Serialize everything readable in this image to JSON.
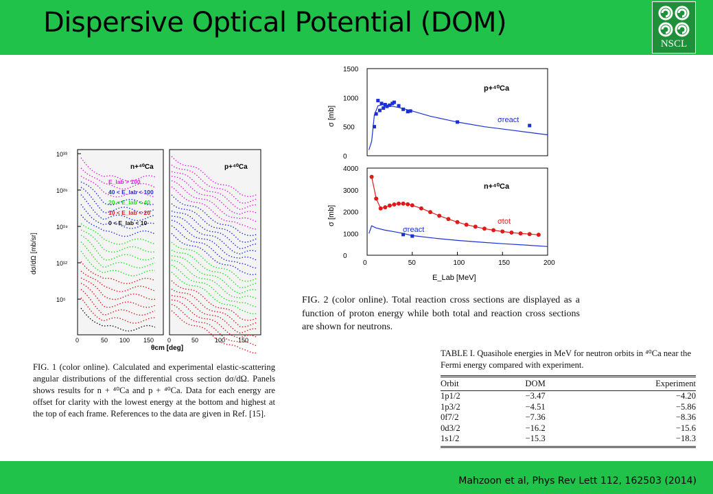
{
  "slide": {
    "title": "Dispersive Optical Potential (DOM)",
    "logo_text": "NSCL",
    "citation": "Mahzoon et al, Phys Rev Lett 112, 162503 (2014)"
  },
  "fig1": {
    "panel_left_label": "n+⁴⁰Ca",
    "panel_right_label": "p+⁴⁰Ca",
    "y_axis_label": "dσ/dΩ [mb/sr]",
    "x_axis_label": "θcm [deg]",
    "y_ticks": [
      "10³³",
      "10²⁶",
      "10¹⁹",
      "10¹²",
      "10⁵"
    ],
    "x_ticks_left": [
      "0",
      "50",
      "100",
      "150"
    ],
    "x_ticks_right": [
      "0",
      "50",
      "100",
      "150"
    ],
    "legend": [
      {
        "label": "E_lab > 100",
        "color": "#e01ee0"
      },
      {
        "label": "40 < E_lab < 100",
        "color": "#1a2fd8"
      },
      {
        "label": "20 < E_lab < 40",
        "color": "#1ee01e"
      },
      {
        "label": "10 < E_lab < 20",
        "color": "#e01a1a"
      },
      {
        "label": "0 < E_lab < 10",
        "color": "#111111"
      }
    ],
    "caption": "FIG. 1 (color online). Calculated and experimental elastic-scattering angular distributions of the differential cross section dσ/dΩ. Panels shows results for n + ⁴⁰Ca and p + ⁴⁰Ca. Data for each energy are offset for clarity with the lowest energy at the bottom and highest at the top of each frame. References to the data are given in Ref. [15]."
  },
  "fig2": {
    "top_panel_label": "p+⁴⁰Ca",
    "bottom_panel_label": "n+⁴⁰Ca",
    "top_y_label": "σ [mb]",
    "bottom_y_label": "σ [mb]",
    "x_label": "E_Lab [MeV]",
    "top_y_ticks": [
      "1500",
      "1000",
      "500",
      "0"
    ],
    "bottom_y_ticks": [
      "4000",
      "3000",
      "2000",
      "1000",
      "0"
    ],
    "x_ticks": [
      "0",
      "50",
      "100",
      "150",
      "200"
    ],
    "top_curve_label": "σreact",
    "bottom_tot_label": "σtot",
    "bottom_react_label": "σreact",
    "caption": "FIG. 2 (color online). Total reaction cross sections are displayed as a function of proton energy while both total and reaction cross sections are shown for neutrons."
  },
  "table1": {
    "caption": "TABLE I. Quasihole energies in MeV for neutron orbits in ⁴⁰Ca near the Fermi energy compared with experiment.",
    "headers": [
      "Orbit",
      "DOM",
      "Experiment"
    ],
    "rows": [
      {
        "orbit": "1p1/2",
        "dom": "−3.47",
        "exp": "−4.20"
      },
      {
        "orbit": "1p3/2",
        "dom": "−4.51",
        "exp": "−5.86"
      },
      {
        "orbit": "0f7/2",
        "dom": "−7.36",
        "exp": "−8.36"
      },
      {
        "orbit": "0d3/2",
        "dom": "−16.2",
        "exp": "−15.6"
      },
      {
        "orbit": "1s1/2",
        "dom": "−15.3",
        "exp": "−18.3"
      }
    ]
  },
  "chart_data": [
    {
      "type": "line",
      "title": "p+⁴⁰Ca",
      "xlabel": "E_Lab [MeV]",
      "ylabel": "σ [mb]",
      "xlim": [
        0,
        200
      ],
      "ylim": [
        0,
        1500
      ],
      "series": [
        {
          "name": "σreact",
          "kind": "curve",
          "color": "#1a2fd8",
          "x": [
            2,
            5,
            8,
            12,
            18,
            25,
            35,
            50,
            70,
            100,
            130,
            160,
            200
          ],
          "values": [
            100,
            250,
            700,
            860,
            880,
            860,
            830,
            770,
            680,
            580,
            500,
            440,
            360
          ]
        },
        {
          "name": "data",
          "kind": "points",
          "color": "#1a2fd8",
          "x": [
            8,
            10,
            12,
            14,
            16,
            18,
            20,
            22,
            25,
            28,
            30,
            35,
            40,
            45,
            48,
            100,
            180
          ],
          "values": [
            500,
            720,
            950,
            780,
            900,
            820,
            880,
            850,
            870,
            900,
            920,
            860,
            800,
            760,
            770,
            580,
            520
          ]
        }
      ]
    },
    {
      "type": "line",
      "title": "n+⁴⁰Ca",
      "xlabel": "E_Lab [MeV]",
      "ylabel": "σ [mb]",
      "xlim": [
        0,
        200
      ],
      "ylim": [
        0,
        4000
      ],
      "series": [
        {
          "name": "σtot",
          "kind": "curve+points",
          "color": "#e01a1a",
          "x": [
            5,
            10,
            15,
            20,
            25,
            30,
            35,
            40,
            45,
            50,
            60,
            70,
            80,
            90,
            100,
            110,
            120,
            130,
            140,
            150,
            160,
            170,
            180,
            190
          ],
          "values": [
            3600,
            2600,
            2150,
            2200,
            2280,
            2330,
            2370,
            2370,
            2340,
            2290,
            2150,
            1980,
            1810,
            1660,
            1520,
            1400,
            1310,
            1220,
            1150,
            1090,
            1040,
            1000,
            970,
            940
          ]
        },
        {
          "name": "σreact",
          "kind": "curve",
          "color": "#1a2fd8",
          "x": [
            2,
            5,
            10,
            20,
            30,
            40,
            50,
            75,
            100,
            125,
            150,
            175,
            200
          ],
          "values": [
            1000,
            1350,
            1250,
            1150,
            1080,
            1000,
            900,
            780,
            680,
            600,
            530,
            470,
            400
          ]
        },
        {
          "name": "σreact data",
          "kind": "points",
          "color": "#1a2fd8",
          "x": [
            40,
            50
          ],
          "values": [
            950,
            880
          ]
        }
      ]
    }
  ]
}
